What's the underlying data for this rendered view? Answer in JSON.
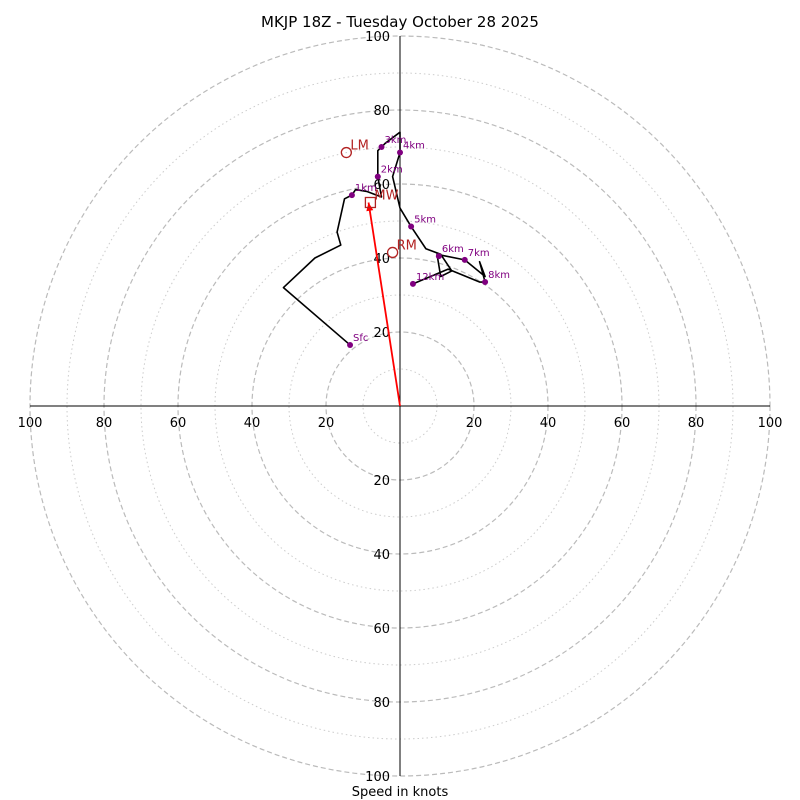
{
  "chart_data": {
    "type": "hodograph",
    "title": "MKJP 18Z - Tuesday October 28 2025",
    "xlabel": "Speed in knots",
    "range": [
      -100,
      100
    ],
    "rings_major": [
      20,
      40,
      60,
      80,
      100
    ],
    "rings_minor": [
      10,
      30,
      50,
      70,
      90
    ],
    "x_tick_labels": [
      {
        "value": -100,
        "label": "100"
      },
      {
        "value": -80,
        "label": "80"
      },
      {
        "value": -60,
        "label": "60"
      },
      {
        "value": -40,
        "label": "40"
      },
      {
        "value": -20,
        "label": "20"
      },
      {
        "value": 20,
        "label": "20"
      },
      {
        "value": 40,
        "label": "40"
      },
      {
        "value": 60,
        "label": "60"
      },
      {
        "value": 80,
        "label": "80"
      },
      {
        "value": 100,
        "label": "100"
      }
    ],
    "y_tick_labels": [
      {
        "value": 100,
        "label": "100"
      },
      {
        "value": 80,
        "label": "80"
      },
      {
        "value": 60,
        "label": "60"
      },
      {
        "value": 40,
        "label": "40"
      },
      {
        "value": 20,
        "label": "20"
      },
      {
        "value": -20,
        "label": "20"
      },
      {
        "value": -40,
        "label": "40"
      },
      {
        "value": -60,
        "label": "60"
      },
      {
        "value": -80,
        "label": "80"
      },
      {
        "value": -100,
        "label": "100"
      }
    ],
    "trace": [
      [
        -13.5,
        16.5
      ],
      [
        -31.5,
        32
      ],
      [
        -23,
        40
      ],
      [
        -16,
        43.5
      ],
      [
        -17,
        47
      ],
      [
        -15,
        56
      ],
      [
        -13,
        57
      ],
      [
        -12,
        58.5
      ],
      [
        -9,
        58
      ],
      [
        -5,
        56.5
      ],
      [
        -6,
        62
      ],
      [
        -6,
        65
      ],
      [
        -6,
        69
      ],
      [
        -5,
        70
      ],
      [
        -4,
        71
      ],
      [
        0,
        74
      ],
      [
        0,
        68.5
      ],
      [
        -2,
        62
      ],
      [
        0,
        53.5
      ],
      [
        3,
        48.5
      ],
      [
        7,
        42.5
      ],
      [
        11,
        41
      ],
      [
        14,
        36.5
      ],
      [
        11,
        35
      ],
      [
        10,
        41
      ],
      [
        17.5,
        39.5
      ],
      [
        23,
        35
      ],
      [
        21.5,
        39
      ],
      [
        23,
        33.5
      ],
      [
        21.5,
        33.5
      ],
      [
        13,
        37
      ],
      [
        3.5,
        33
      ]
    ],
    "height_markers": [
      {
        "label": "Sfc",
        "u": -13.5,
        "v": 16.5
      },
      {
        "label": "1km",
        "u": -13,
        "v": 57
      },
      {
        "label": "2km",
        "u": -6,
        "v": 62
      },
      {
        "label": "3km",
        "u": -5,
        "v": 70
      },
      {
        "label": "4km",
        "u": 0,
        "v": 68.5
      },
      {
        "label": "5km",
        "u": 3,
        "v": 48.5
      },
      {
        "label": "6km",
        "u": 10.5,
        "v": 40.5
      },
      {
        "label": "7km",
        "u": 17.5,
        "v": 39.5
      },
      {
        "label": "8km",
        "u": 23,
        "v": 33.5
      },
      {
        "label": "12km",
        "u": 3.5,
        "v": 33
      }
    ],
    "motion_markers": [
      {
        "label": "LM",
        "u": -14.5,
        "v": 68.5,
        "shape": "circle"
      },
      {
        "label": "MW",
        "u": -8,
        "v": 55,
        "shape": "square"
      },
      {
        "label": "RM",
        "u": -2,
        "v": 41.5,
        "shape": "circle"
      }
    ],
    "storm_motion_vector": {
      "from": [
        0,
        0
      ],
      "to": [
        -8.5,
        55
      ]
    },
    "colors": {
      "trace": "#000000",
      "height_marker": "#800080",
      "motion_marker": "#b22222",
      "vector": "#ff0000",
      "ring_major": "#bbbbbb",
      "ring_minor": "#cccccc",
      "axis": "#000000"
    }
  }
}
